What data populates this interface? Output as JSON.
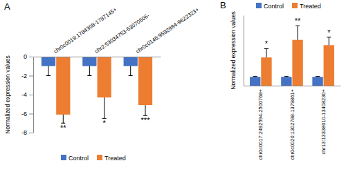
{
  "chart_data": [
    {
      "type": "bar",
      "title": "A",
      "y_label": "Normalized expression values",
      "categories": [
        "chr0c0019:1784308-1787145+",
        "chr2:53034753-53070506-",
        "chr0c0145:9592884-9622323+"
      ],
      "series": [
        {
          "name": "Control",
          "color": "#4472c4",
          "values": [
            -1,
            -1,
            -1
          ],
          "errors": [
            1,
            1,
            1
          ]
        },
        {
          "name": "Treated",
          "color": "#ed7d31",
          "values": [
            -6.1,
            -4.3,
            -5.1
          ],
          "errors": [
            0.9,
            2.2,
            1.1
          ],
          "annotations": [
            "**",
            "*",
            "***"
          ]
        }
      ],
      "ylim": [
        -8,
        0
      ],
      "yticks": [
        -8,
        -6,
        -4,
        -2,
        0
      ],
      "legend": "bottom"
    },
    {
      "type": "bar",
      "title": "B",
      "y_label": "Normalized expression values",
      "categories": [
        "chr0c0017:2492594-2500768+",
        "chr0c0020:1302788-1379861+",
        "chr13:13338010-13408230+"
      ],
      "series": [
        {
          "name": "Control",
          "color": "#4472c4",
          "values": [
            1,
            1,
            1
          ],
          "errors": [
            0.05,
            0.05,
            0.05
          ]
        },
        {
          "name": "Treated",
          "color": "#ed7d31",
          "values": [
            3.2,
            5.2,
            4.6
          ],
          "errors": [
            1.0,
            1.6,
            0.9
          ],
          "annotations": [
            "*",
            "**",
            "*"
          ]
        }
      ],
      "ylim": [
        0,
        8
      ],
      "tick_labels": "x",
      "legend": "top"
    }
  ]
}
